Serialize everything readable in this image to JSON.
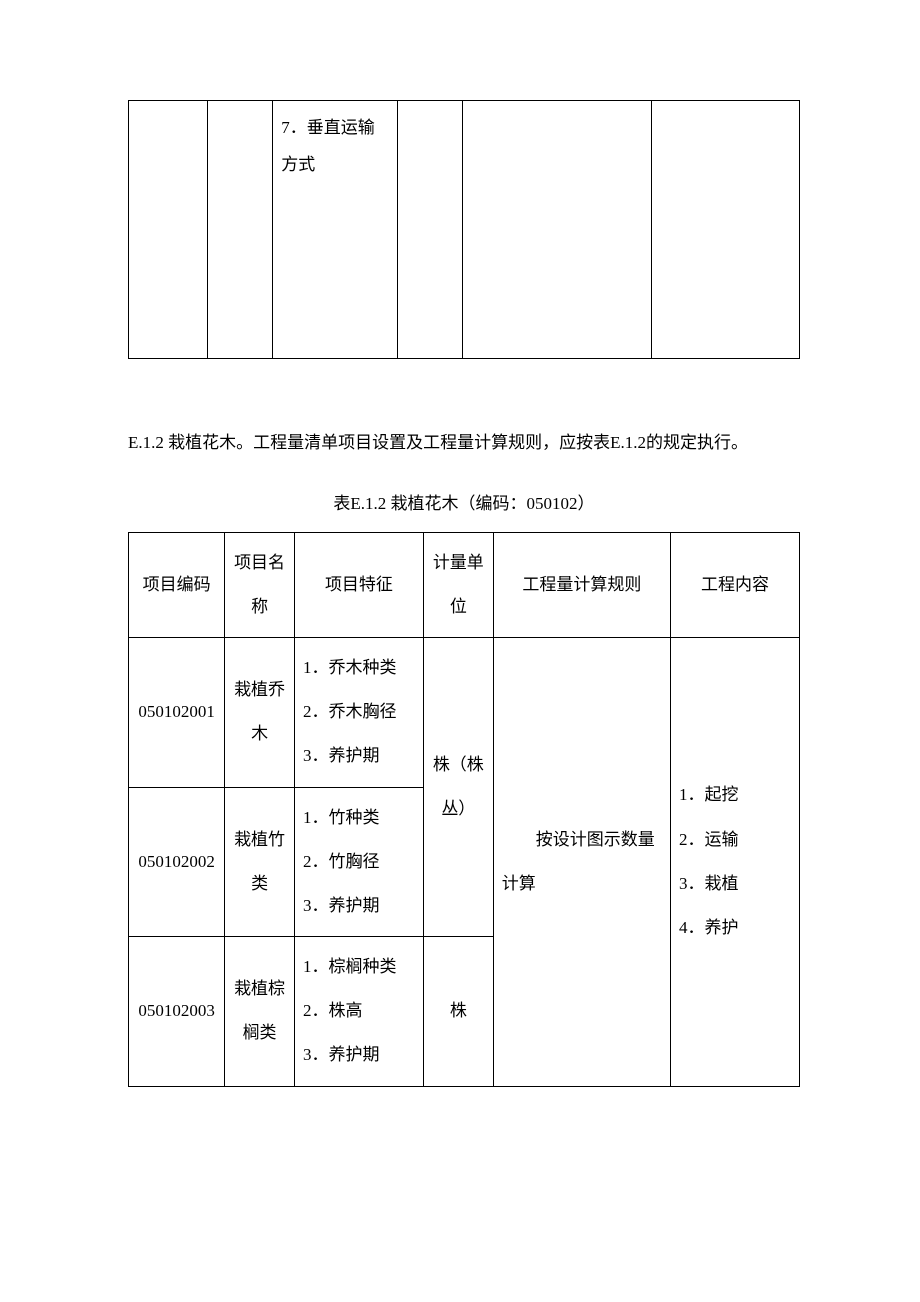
{
  "top_table": {
    "cell3_content": "7．垂直运输方式"
  },
  "section": {
    "text": "E.1.2 栽植花木。工程量清单项目设置及工程量计算规则，应按表E.1.2的规定执行。"
  },
  "table_caption": "表E.1.2 栽植花木（编码：050102）",
  "headers": {
    "col1": "项目编码",
    "col2": "项目名称",
    "col3": "项目特征",
    "col4": "计量单位",
    "col5": "工程量计算规则",
    "col6": "工程内容"
  },
  "rows": [
    {
      "code": "050102001",
      "name": "栽植乔木",
      "features": "1．乔木种类\n2．乔木胸径\n3．养护期"
    },
    {
      "code": "050102002",
      "name": "栽植竹类",
      "features": "1．竹种类\n2．竹胸径\n3．养护期"
    },
    {
      "code": "050102003",
      "name": "栽植棕榈类",
      "features": "1．棕榈种类\n2．株高\n3．养护期"
    }
  ],
  "unit1": "株（株丛）",
  "unit2": "株",
  "rule": "按设计图示数量计算",
  "content": "1．起挖\n2．运输\n3．栽植\n4．养护",
  "colors": {
    "background": "#ffffff",
    "border": "#000000",
    "text": "#000000"
  },
  "typography": {
    "body_fontsize": 17,
    "line_height": 2.6,
    "font_family": "SimSun"
  }
}
